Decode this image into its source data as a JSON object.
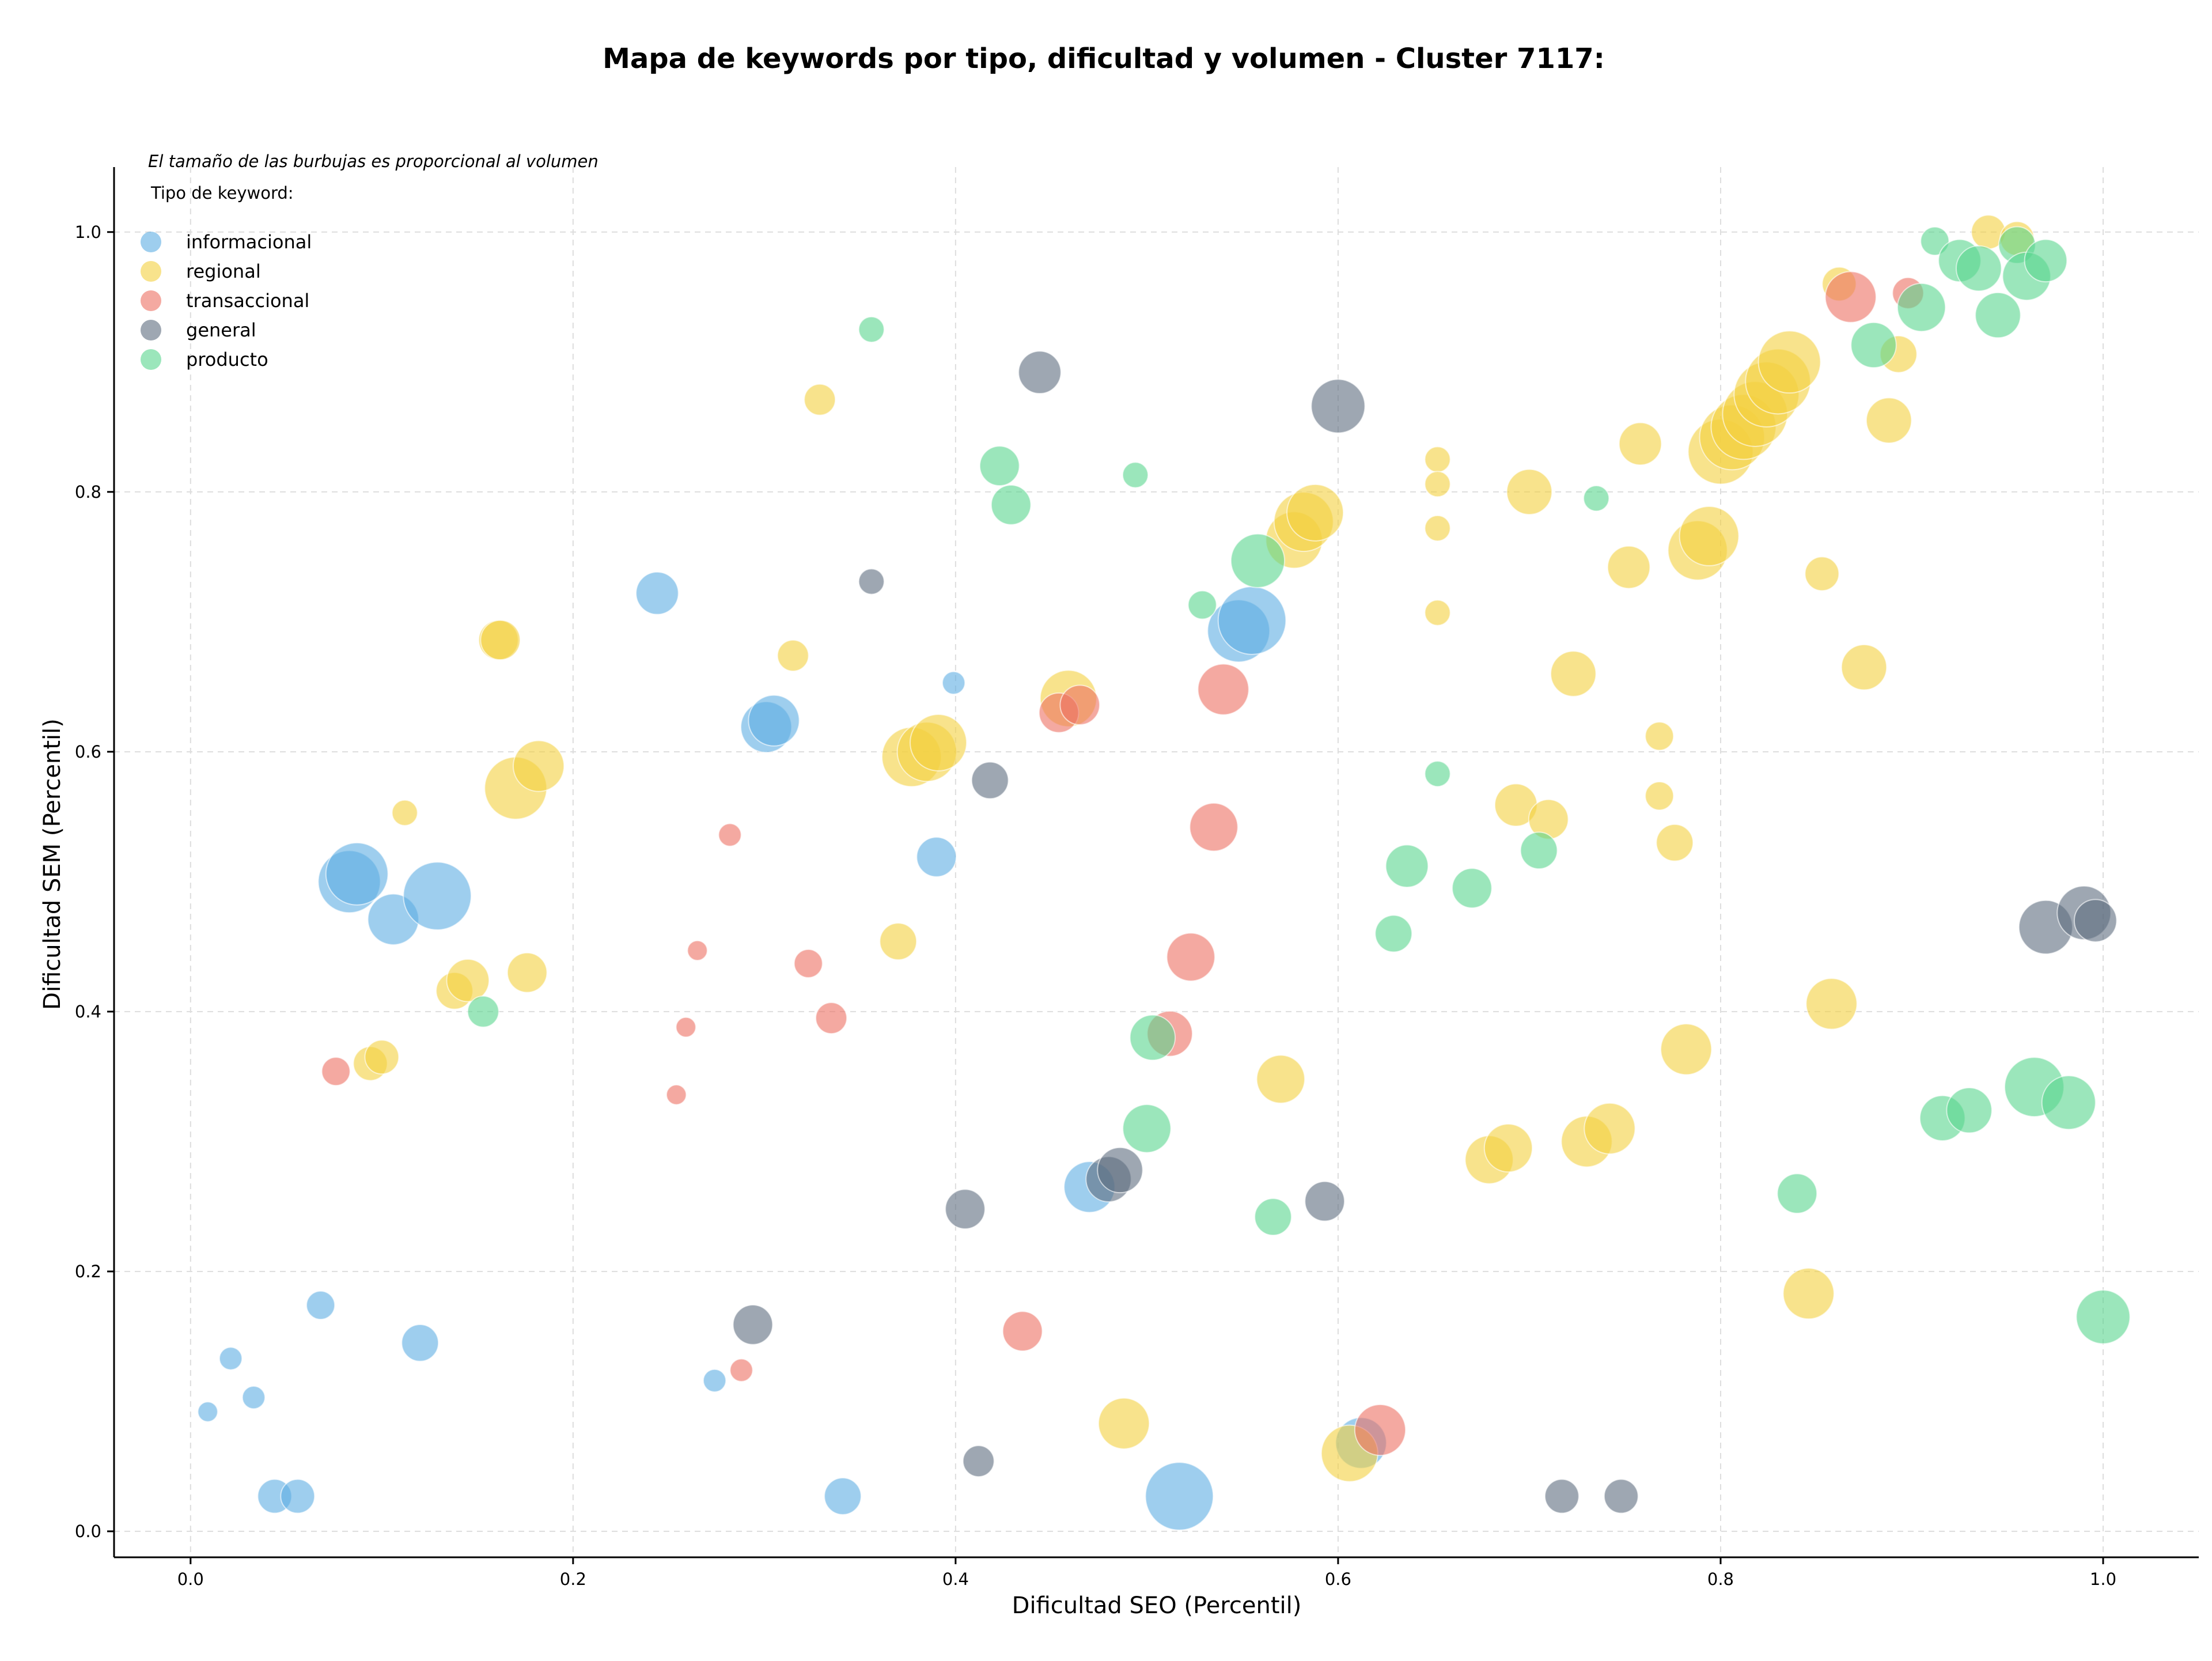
{
  "chart_data": {
    "type": "scatter",
    "title": "Mapa de keywords por tipo, dificultad y volumen - Cluster 7117:",
    "xlabel": "Dificultad SEO (Percentil)",
    "ylabel": "Dificultad SEM (Percentil)",
    "xlim": [
      -0.04,
      1.05
    ],
    "ylim": [
      -0.02,
      1.05
    ],
    "xticks": [
      "0.0",
      "0.2",
      "0.4",
      "0.6",
      "0.8",
      "1.0"
    ],
    "yticks": [
      "0.0",
      "0.2",
      "0.4",
      "0.6",
      "0.8",
      "1.0"
    ],
    "xtick_values": [
      0,
      0.2,
      0.4,
      0.6,
      0.8,
      1.0
    ],
    "ytick_values": [
      0,
      0.2,
      0.4,
      0.6,
      0.8,
      1.0
    ],
    "grid": true,
    "size_note": "El tamaño de las burbujas es proporcional al volumen",
    "legend_title": "Tipo de keyword:",
    "legend_position": "top-left",
    "series": [
      {
        "name": "informacional",
        "color": "#5DADE2",
        "points": [
          [
            0.009,
            0.092,
            7
          ],
          [
            0.021,
            0.133,
            8
          ],
          [
            0.033,
            0.103,
            8
          ],
          [
            0.044,
            0.027,
            12
          ],
          [
            0.056,
            0.027,
            12
          ],
          [
            0.068,
            0.174,
            10
          ],
          [
            0.083,
            0.5,
            22
          ],
          [
            0.087,
            0.506,
            22
          ],
          [
            0.106,
            0.471,
            18
          ],
          [
            0.129,
            0.489,
            24
          ],
          [
            0.12,
            0.145,
            13
          ],
          [
            0.244,
            0.722,
            15
          ],
          [
            0.274,
            0.116,
            8
          ],
          [
            0.301,
            0.619,
            18
          ],
          [
            0.305,
            0.624,
            18
          ],
          [
            0.341,
            0.027,
            13
          ],
          [
            0.39,
            0.519,
            14
          ],
          [
            0.399,
            0.653,
            8
          ],
          [
            0.47,
            0.265,
            18
          ],
          [
            0.517,
            0.027,
            24
          ],
          [
            0.548,
            0.693,
            22
          ],
          [
            0.555,
            0.701,
            24
          ],
          [
            0.612,
            0.068,
            18
          ]
        ]
      },
      {
        "name": "regional",
        "color": "#F4D03F",
        "points": [
          [
            0.094,
            0.36,
            12
          ],
          [
            0.1,
            0.365,
            12
          ],
          [
            0.112,
            0.553,
            9
          ],
          [
            0.138,
            0.416,
            13
          ],
          [
            0.145,
            0.424,
            15
          ],
          [
            0.161,
            0.686,
            14
          ],
          [
            0.162,
            0.686,
            14
          ],
          [
            0.17,
            0.572,
            22
          ],
          [
            0.182,
            0.589,
            18
          ],
          [
            0.176,
            0.43,
            14
          ],
          [
            0.315,
            0.674,
            11
          ],
          [
            0.329,
            0.871,
            11
          ],
          [
            0.37,
            0.454,
            13
          ],
          [
            0.377,
            0.596,
            21
          ],
          [
            0.385,
            0.6,
            21
          ],
          [
            0.391,
            0.607,
            20
          ],
          [
            0.459,
            0.641,
            20
          ],
          [
            0.488,
            0.083,
            18
          ],
          [
            0.57,
            0.348,
            17
          ],
          [
            0.577,
            0.763,
            20
          ],
          [
            0.582,
            0.777,
            21
          ],
          [
            0.588,
            0.784,
            20
          ],
          [
            0.606,
            0.06,
            20
          ],
          [
            0.652,
            0.825,
            9
          ],
          [
            0.652,
            0.806,
            9
          ],
          [
            0.652,
            0.772,
            9
          ],
          [
            0.652,
            0.707,
            9
          ],
          [
            0.679,
            0.286,
            17
          ],
          [
            0.689,
            0.295,
            17
          ],
          [
            0.693,
            0.559,
            15
          ],
          [
            0.7,
            0.8,
            16
          ],
          [
            0.71,
            0.548,
            14
          ],
          [
            0.723,
            0.66,
            16
          ],
          [
            0.73,
            0.3,
            18
          ],
          [
            0.742,
            0.31,
            18
          ],
          [
            0.752,
            0.742,
            15
          ],
          [
            0.758,
            0.837,
            15
          ],
          [
            0.768,
            0.612,
            10
          ],
          [
            0.768,
            0.566,
            10
          ],
          [
            0.776,
            0.53,
            13
          ],
          [
            0.782,
            0.371,
            18
          ],
          [
            0.788,
            0.755,
            21
          ],
          [
            0.794,
            0.766,
            21
          ],
          [
            0.8,
            0.831,
            23
          ],
          [
            0.806,
            0.842,
            23
          ],
          [
            0.812,
            0.85,
            23
          ],
          [
            0.818,
            0.86,
            23
          ],
          [
            0.824,
            0.875,
            23
          ],
          [
            0.83,
            0.885,
            23
          ],
          [
            0.836,
            0.9,
            22
          ],
          [
            0.846,
            0.183,
            18
          ],
          [
            0.853,
            0.737,
            12
          ],
          [
            0.858,
            0.406,
            18
          ],
          [
            0.862,
            0.96,
            12
          ],
          [
            0.875,
            0.665,
            16
          ],
          [
            0.888,
            0.855,
            16
          ],
          [
            0.893,
            0.906,
            13
          ],
          [
            0.94,
            1.0,
            12
          ],
          [
            0.955,
            0.995,
            12
          ]
        ]
      },
      {
        "name": "transaccional",
        "color": "#EC7063",
        "points": [
          [
            0.076,
            0.354,
            10
          ],
          [
            0.254,
            0.336,
            7
          ],
          [
            0.259,
            0.388,
            7
          ],
          [
            0.265,
            0.447,
            7
          ],
          [
            0.282,
            0.536,
            8
          ],
          [
            0.288,
            0.124,
            8
          ],
          [
            0.323,
            0.437,
            10
          ],
          [
            0.335,
            0.395,
            11
          ],
          [
            0.435,
            0.154,
            14
          ],
          [
            0.454,
            0.63,
            14
          ],
          [
            0.465,
            0.636,
            14
          ],
          [
            0.512,
            0.383,
            16
          ],
          [
            0.523,
            0.442,
            17
          ],
          [
            0.535,
            0.542,
            17
          ],
          [
            0.54,
            0.648,
            18
          ],
          [
            0.622,
            0.078,
            18
          ],
          [
            0.868,
            0.95,
            18
          ],
          [
            0.898,
            0.953,
            11
          ]
        ]
      },
      {
        "name": "general",
        "color": "#5D6D7E",
        "points": [
          [
            0.356,
            0.731,
            9
          ],
          [
            0.294,
            0.159,
            14
          ],
          [
            0.405,
            0.248,
            14
          ],
          [
            0.412,
            0.054,
            11
          ],
          [
            0.418,
            0.578,
            13
          ],
          [
            0.444,
            0.892,
            15
          ],
          [
            0.48,
            0.271,
            16
          ],
          [
            0.486,
            0.278,
            16
          ],
          [
            0.593,
            0.254,
            14
          ],
          [
            0.6,
            0.866,
            19
          ],
          [
            0.717,
            0.027,
            12
          ],
          [
            0.748,
            0.027,
            12
          ],
          [
            0.97,
            0.465,
            19
          ],
          [
            0.99,
            0.476,
            19
          ],
          [
            0.996,
            0.47,
            15
          ]
        ]
      },
      {
        "name": "producto",
        "color": "#58D68D",
        "points": [
          [
            0.153,
            0.4,
            11
          ],
          [
            0.356,
            0.925,
            9
          ],
          [
            0.423,
            0.82,
            14
          ],
          [
            0.429,
            0.79,
            14
          ],
          [
            0.494,
            0.813,
            9
          ],
          [
            0.503,
            0.38,
            16
          ],
          [
            0.5,
            0.31,
            17
          ],
          [
            0.529,
            0.713,
            10
          ],
          [
            0.558,
            0.747,
            19
          ],
          [
            0.566,
            0.242,
            13
          ],
          [
            0.629,
            0.46,
            13
          ],
          [
            0.636,
            0.512,
            15
          ],
          [
            0.652,
            0.583,
            9
          ],
          [
            0.67,
            0.495,
            14
          ],
          [
            0.705,
            0.524,
            13
          ],
          [
            0.735,
            0.795,
            9
          ],
          [
            0.84,
            0.26,
            14
          ],
          [
            0.88,
            0.913,
            16
          ],
          [
            0.905,
            0.942,
            17
          ],
          [
            0.912,
            0.993,
            10
          ],
          [
            0.925,
            0.978,
            15
          ],
          [
            0.935,
            0.972,
            16
          ],
          [
            0.945,
            0.936,
            16
          ],
          [
            0.955,
            0.99,
            13
          ],
          [
            0.96,
            0.966,
            17
          ],
          [
            0.97,
            0.978,
            15
          ],
          [
            0.916,
            0.318,
            16
          ],
          [
            0.93,
            0.324,
            16
          ],
          [
            0.964,
            0.342,
            21
          ],
          [
            0.982,
            0.33,
            19
          ],
          [
            1.0,
            0.165,
            19
          ]
        ]
      }
    ]
  }
}
